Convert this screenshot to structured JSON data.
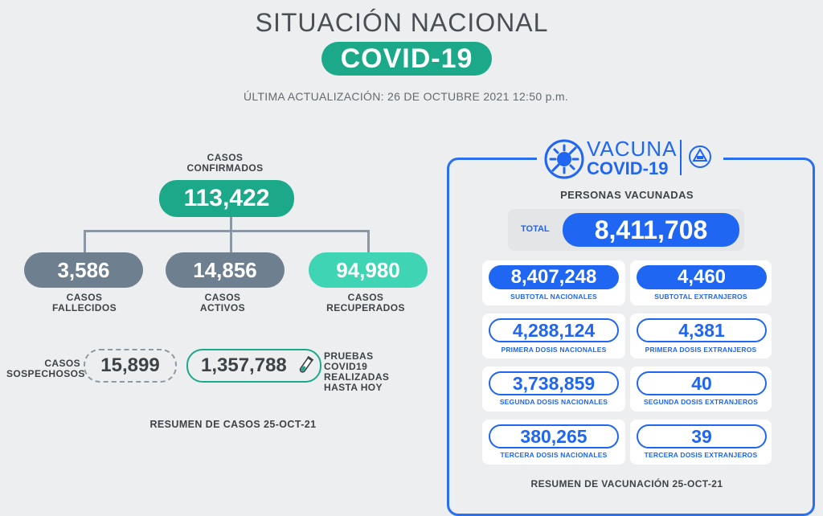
{
  "header": {
    "title": "SITUACIÓN NACIONAL",
    "badge": "COVID-19",
    "updated": "ÚLTIMA ACTUALIZACIÓN: 26 DE OCTUBRE 2021 12:50 p.m."
  },
  "cases": {
    "confirmed_label_1": "CASOS",
    "confirmed_label_2": "CONFIRMADOS",
    "confirmed": "113,422",
    "deaths": "3,586",
    "deaths_label_1": "CASOS",
    "deaths_label_2": "FALLECIDOS",
    "active": "14,856",
    "active_label_1": "CASOS",
    "active_label_2": "ACTIVOS",
    "recovered": "94,980",
    "recovered_label_1": "CASOS",
    "recovered_label_2": "RECUPERADOS",
    "suspected_label_1": "CASOS",
    "suspected_label_2": "SOSPECHOSOS",
    "suspected": "15,899",
    "tests": "1,357,788",
    "tests_label_1": "PRUEBAS COVID19",
    "tests_label_2": "REALIZADAS",
    "tests_label_3": "HASTA HOY",
    "summary": "RESUMEN DE CASOS 25-OCT-21"
  },
  "vaccination": {
    "logo_line1": "VACUNA",
    "logo_line2": "COVID-19",
    "title": "PERSONAS VACUNADAS",
    "total_label": "TOTAL",
    "total": "8,411,708",
    "subtotal_nac": "8,407,248",
    "subtotal_nac_label": "SUBTOTAL NACIONALES",
    "subtotal_ext": "4,460",
    "subtotal_ext_label": "SUBTOTAL EXTRANJEROS",
    "first_nac": "4,288,124",
    "first_nac_label": "PRIMERA DOSIS NACIONALES",
    "first_ext": "4,381",
    "first_ext_label": "PRIMERA DOSIS EXTRANJEROS",
    "second_nac": "3,738,859",
    "second_nac_label": "SEGUNDA DOSIS NACIONALES",
    "second_ext": "40",
    "second_ext_label": "SEGUNDA DOSIS EXTRANJEROS",
    "third_nac": "380,265",
    "third_nac_label": "TERCERA DOSIS NACIONALES",
    "third_ext": "39",
    "third_ext_label": "TERCERA DOSIS EXTRANJEROS",
    "summary": "RESUMEN DE VACUNACIÓN 25-OCT-21"
  },
  "colors": {
    "teal": "#1ba98a",
    "slate": "#6e7f8f",
    "mint": "#3fd4b4",
    "blue": "#1f66f2"
  },
  "icons": {
    "vaccine_logo": "virus-icon",
    "seal": "national-seal-icon",
    "test": "test-tube-icon"
  }
}
